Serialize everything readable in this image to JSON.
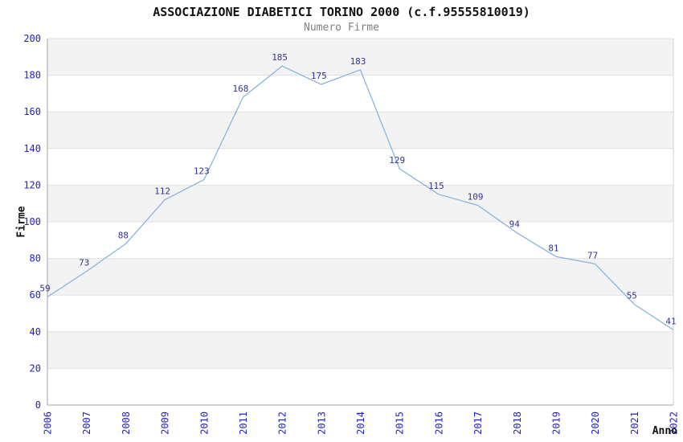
{
  "header": {
    "title": "ASSOCIAZIONE DIABETICI TORINO 2000 (c.f.95555810019)",
    "subtitle": "Numero Firme"
  },
  "chart_data": {
    "type": "line",
    "title": "ASSOCIAZIONE DIABETICI TORINO 2000 (c.f.95555810019)",
    "subtitle": "Numero Firme",
    "xlabel": "Anno",
    "ylabel": "Firme",
    "categories": [
      "2006",
      "2007",
      "2008",
      "2009",
      "2010",
      "2011",
      "2012",
      "2013",
      "2014",
      "2015",
      "2016",
      "2017",
      "2018",
      "2019",
      "2020",
      "2021",
      "2022"
    ],
    "values": [
      59,
      73,
      88,
      112,
      123,
      168,
      185,
      175,
      183,
      129,
      115,
      109,
      94,
      81,
      77,
      55,
      41
    ],
    "ylim": [
      0,
      200
    ],
    "ytick_step": 20,
    "grid": "horizontal-only",
    "banding": "alternating horizontal bands of 20 units, gray band at top (180-200)",
    "legend": "none",
    "data_labels": true,
    "colors": {
      "line": "#85b2e2",
      "data_label": "#333399",
      "tick_label": "#2222cc",
      "band_fill": "#f3f3f3",
      "gridline": "#e0e0e0",
      "axis_line": "#a6a6a6",
      "plot_border": "#d6d6d6",
      "title": "#111111",
      "subtitle": "#808080"
    }
  }
}
